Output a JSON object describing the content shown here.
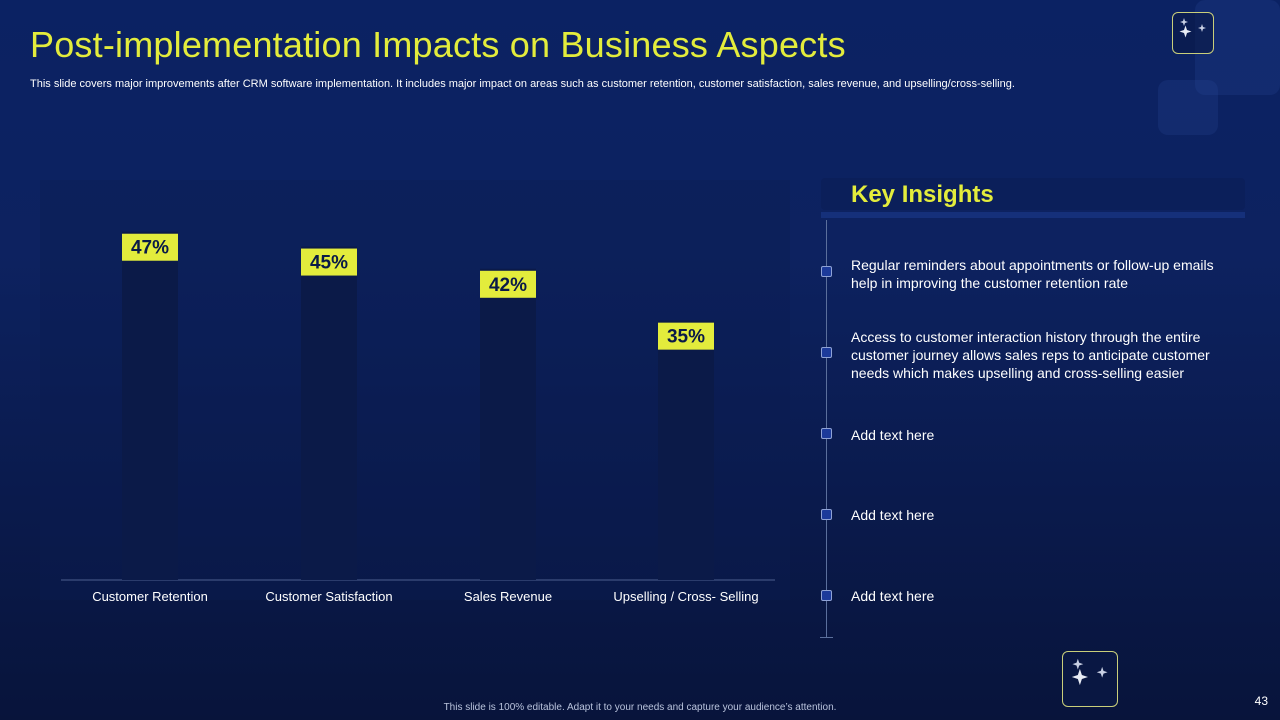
{
  "slide": {
    "title": "Post-implementation  Impacts on Business Aspects",
    "subtitle": "This slide covers major improvements after CRM software implementation. It includes major impact on areas such as customer retention, customer satisfaction, sales revenue, and upselling/cross-selling.",
    "footer": "This slide is 100% editable. Adapt it to your needs and capture your audience’s attention.",
    "page_number": "43"
  },
  "colors": {
    "accent": "#e3ec3c",
    "background": "#0b2263",
    "bar_fill": "#0b1a48"
  },
  "icons": {
    "logo": "sparkle-stars-icon"
  },
  "chart_data": {
    "type": "bar",
    "title": "",
    "xlabel": "",
    "ylabel": "",
    "ylim": [
      0,
      50
    ],
    "grid": false,
    "categories": [
      "Customer Retention",
      "Customer Satisfaction",
      "Sales Revenue",
      "Upselling / Cross- Selling"
    ],
    "values": [
      47,
      45,
      42,
      35
    ],
    "data_labels": [
      "47%",
      "45%",
      "42%",
      "35%"
    ]
  },
  "insights": {
    "header": "Key Insights",
    "items": [
      {
        "text": "Regular reminders about appointments or follow-up emails help in improving the customer retention rate"
      },
      {
        "text": "Access to customer interaction history through the entire customer journey allows sales reps to anticipate customer needs which makes upselling and cross-selling easier"
      },
      {
        "text": "Add text here"
      },
      {
        "text": "Add text here"
      },
      {
        "text": "Add text here"
      }
    ]
  }
}
